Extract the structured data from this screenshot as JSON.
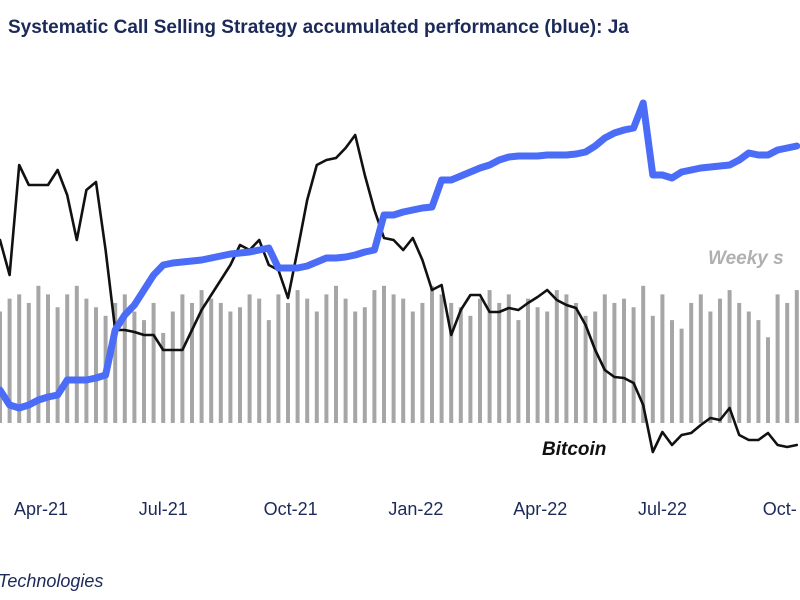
{
  "chart_data": {
    "type": "line",
    "title": "Systematic Call Selling Strategy accumulated performance (blue): Ja",
    "annotations": [
      "Weeky s",
      "Bitcoin"
    ],
    "source": "Technologies",
    "categories": [
      null,
      null,
      null,
      null,
      null,
      "Apr-21",
      null,
      null,
      null,
      null,
      null,
      null,
      null,
      null,
      null,
      null,
      null,
      null,
      "Jul-21",
      null,
      null,
      null,
      null,
      null,
      null,
      null,
      null,
      null,
      null,
      null,
      null,
      "Oct-21",
      null,
      null,
      null,
      null,
      null,
      null,
      null,
      null,
      null,
      null,
      null,
      null,
      "Jan-22",
      null,
      null,
      null,
      null,
      null,
      null,
      null,
      null,
      null,
      null,
      null,
      null,
      "Apr-22",
      null,
      null,
      null,
      null,
      null,
      null,
      null,
      null,
      null,
      null,
      null,
      null,
      "Jul-22",
      null,
      null,
      null,
      null,
      null,
      null,
      null,
      null,
      null,
      null,
      null,
      null,
      "Oct-"
    ],
    "ylim": [
      0,
      400
    ],
    "y2lim": [
      0,
      400
    ],
    "series": [
      {
        "type": "bar",
        "axis": "y2",
        "color": "#a6a6a6",
        "values": [
          130,
          145,
          150,
          140,
          160,
          150,
          135,
          150,
          160,
          145,
          135,
          125,
          140,
          150,
          130,
          120,
          140,
          105,
          130,
          150,
          140,
          155,
          145,
          140,
          130,
          135,
          150,
          145,
          120,
          150,
          140,
          155,
          145,
          130,
          150,
          160,
          145,
          130,
          135,
          155,
          160,
          150,
          145,
          130,
          140,
          160,
          150,
          140,
          135,
          125,
          145,
          155,
          140,
          150,
          120,
          145,
          135,
          130,
          155,
          150,
          140,
          125,
          130,
          150,
          140,
          145,
          135,
          160,
          125,
          150,
          120,
          110,
          140,
          150,
          130,
          145,
          155,
          140,
          130,
          120,
          100,
          150,
          140,
          155
        ]
      },
      {
        "type": "line",
        "name": "Bitcoin",
        "color": "#111111",
        "values": [
          240,
          205,
          315,
          295,
          295,
          295,
          310,
          285,
          240,
          290,
          298,
          230,
          150,
          150,
          148,
          145,
          145,
          130,
          130,
          130,
          150,
          170,
          185,
          200,
          215,
          235,
          230,
          240,
          215,
          210,
          182,
          230,
          280,
          315,
          320,
          322,
          332,
          345,
          305,
          270,
          242,
          240,
          230,
          242,
          220,
          190,
          195,
          145,
          170,
          185,
          185,
          168,
          168,
          172,
          170,
          177,
          183,
          190,
          180,
          175,
          172,
          155,
          130,
          110,
          103,
          102,
          97,
          75,
          28,
          48,
          35,
          45,
          47,
          55,
          62,
          60,
          72,
          45,
          40,
          40,
          47,
          35,
          33,
          35
        ]
      },
      {
        "type": "line",
        "color": "#4a6cf7",
        "values": [
          90,
          75,
          72,
          75,
          80,
          83,
          85,
          100,
          100,
          100,
          102,
          105,
          150,
          165,
          175,
          190,
          205,
          215,
          217,
          218,
          219,
          220,
          222,
          224,
          226,
          227,
          228,
          230,
          232,
          212,
          212,
          212,
          214,
          218,
          222,
          222,
          223,
          225,
          228,
          230,
          265,
          265,
          268,
          270,
          272,
          273,
          300,
          300,
          304,
          308,
          312,
          315,
          320,
          323,
          324,
          324,
          324,
          325,
          325,
          325,
          326,
          328,
          334,
          342,
          347,
          350,
          352,
          377,
          305,
          305,
          302,
          308,
          310,
          312,
          313,
          314,
          315,
          320,
          327,
          325,
          325,
          330,
          332,
          334
        ]
      }
    ]
  }
}
